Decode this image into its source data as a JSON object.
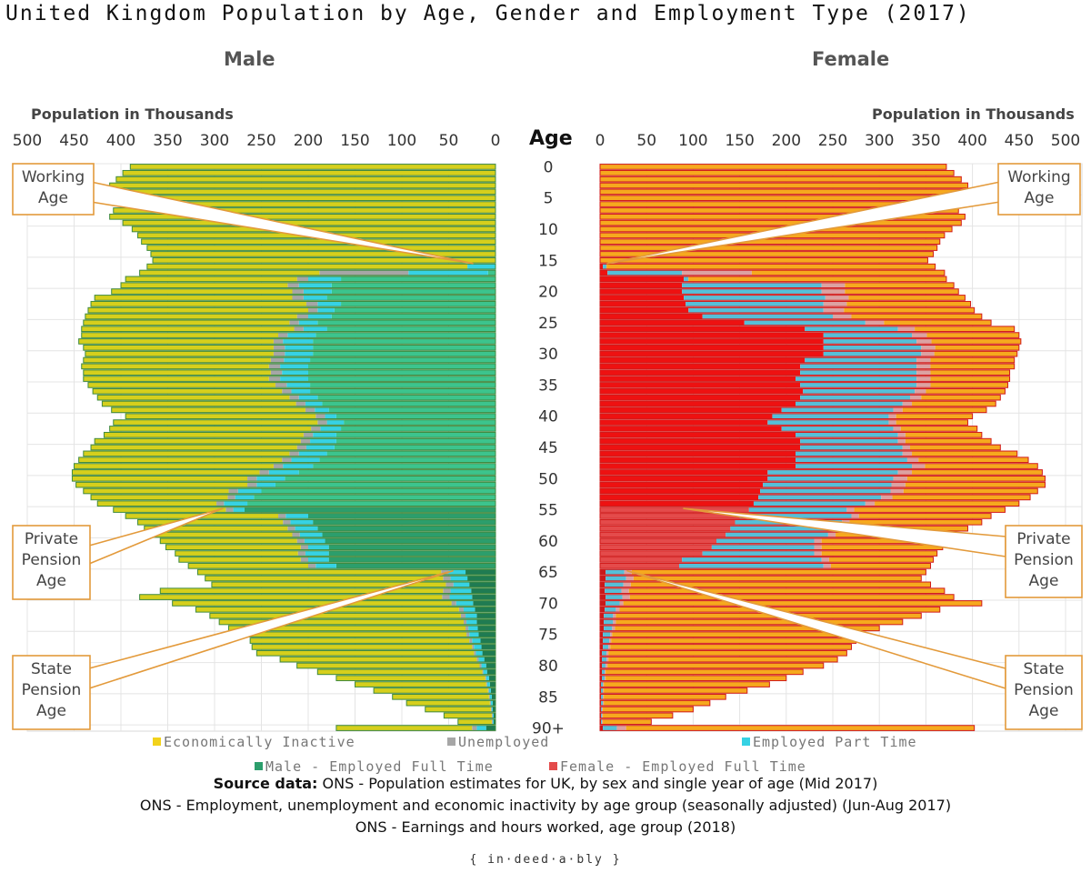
{
  "title": "United Kingdom Population by Age, Gender and Employment Type (2017)",
  "male_label": "Male",
  "female_label": "Female",
  "axis_title_left": "Population in Thousands",
  "axis_title_right": "Population in Thousands",
  "age_axis_label": "Age",
  "callouts": {
    "working": [
      "Working",
      "Age"
    ],
    "private": [
      "Private",
      "Pension",
      "Age"
    ],
    "state": [
      "State",
      "Pension",
      "Age"
    ]
  },
  "legend": {
    "inactive": "Economically Inactive",
    "unemployed": "Unemployed",
    "part_time": "Employed Part Time",
    "male_ft": "Male - Employed Full Time",
    "female_ft": "Female - Employed Full Time"
  },
  "source": {
    "line1_bold": "Source data:",
    "line1": " ONS - Population estimates for UK, by sex and single year of age (Mid 2017)",
    "line2": "ONS - Employment, unemployment and economic inactivity by age group (seasonally adjusted) (Jun-Aug 2017)",
    "line3": "ONS - Earnings and hours worked, age group (2018)"
  },
  "brand": "{ in·deed·a·bly }",
  "colors": {
    "inactive_male": "#d6cf1c",
    "inactive_female": "#f6a91e",
    "unemployed_male": "#a6a6a6",
    "unemployed_female": "#dca2a2",
    "part_time_male": "#36d2e4",
    "part_time_female": "#56bfd8",
    "male_ft": "#3cc48d",
    "male_ft_dark": "#2c9e6c",
    "male_ft_darker": "#1f7b52",
    "female_ft": "#ee1111",
    "female_ft_dark": "#e44b4b",
    "female_ft_darker": "#c81a1a",
    "male_border": "#3f8a3f",
    "female_border": "#d11a1a",
    "callout": "#e39a3b"
  },
  "chart_data": {
    "type": "population-pyramid (stacked horizontal bar)",
    "xlabel": "Population in Thousands",
    "ylabel": "Age",
    "xlim": [
      0,
      500
    ],
    "x_ticks": [
      0,
      50,
      100,
      150,
      200,
      250,
      300,
      350,
      400,
      450,
      500
    ],
    "age_ticks": [
      "0",
      "5",
      "10",
      "15",
      "20",
      "25",
      "30",
      "35",
      "40",
      "45",
      "50",
      "55",
      "60",
      "65",
      "70",
      "75",
      "80",
      "85",
      "90+"
    ],
    "categories_order": [
      "Employed Full Time",
      "Employed Part Time",
      "Unemployed",
      "Economically Inactive"
    ],
    "male": {
      "total": [
        390,
        398,
        405,
        412,
        418,
        405,
        400,
        408,
        412,
        398,
        388,
        382,
        378,
        372,
        368,
        366,
        372,
        380,
        395,
        400,
        410,
        428,
        432,
        435,
        438,
        440,
        442,
        442,
        445,
        440,
        438,
        440,
        442,
        440,
        440,
        435,
        430,
        425,
        420,
        410,
        395,
        408,
        412,
        418,
        428,
        432,
        440,
        445,
        450,
        452,
        452,
        448,
        440,
        432,
        425,
        408,
        395,
        382,
        375,
        365,
        358,
        352,
        342,
        338,
        328,
        318,
        310,
        303,
        358,
        380,
        345,
        320,
        305,
        295,
        285,
        265,
        262,
        260,
        255,
        230,
        212,
        190,
        170,
        150,
        130,
        110,
        95,
        75,
        55,
        40,
        170
      ],
      "full_time": [
        0,
        0,
        0,
        0,
        0,
        0,
        0,
        0,
        0,
        0,
        0,
        0,
        0,
        0,
        0,
        0,
        0,
        8,
        165,
        175,
        175,
        180,
        165,
        172,
        175,
        190,
        180,
        192,
        195,
        195,
        195,
        198,
        200,
        200,
        200,
        198,
        198,
        190,
        185,
        178,
        170,
        162,
        165,
        170,
        170,
        172,
        180,
        188,
        195,
        210,
        225,
        235,
        250,
        258,
        265,
        268,
        200,
        195,
        190,
        185,
        182,
        178,
        178,
        178,
        170,
        32,
        30,
        28,
        26,
        25,
        24,
        22,
        20,
        20,
        19,
        18,
        16,
        15,
        14,
        12,
        10,
        9,
        7,
        6,
        5,
        4,
        3,
        3,
        2,
        2,
        10
      ],
      "part_time": [
        0,
        0,
        0,
        0,
        0,
        0,
        0,
        0,
        0,
        0,
        0,
        0,
        0,
        0,
        0,
        0,
        30,
        85,
        35,
        35,
        30,
        25,
        25,
        18,
        25,
        20,
        25,
        30,
        32,
        30,
        30,
        28,
        30,
        28,
        30,
        25,
        20,
        20,
        18,
        15,
        12,
        18,
        22,
        25,
        28,
        30,
        30,
        30,
        32,
        32,
        30,
        20,
        25,
        20,
        25,
        12,
        24,
        24,
        24,
        24,
        22,
        22,
        25,
        22,
        22,
        18,
        18,
        17,
        22,
        24,
        18,
        12,
        12,
        11,
        10,
        10,
        9,
        8,
        7,
        6,
        5,
        4,
        3,
        3,
        2,
        2,
        2,
        1,
        1,
        1,
        10
      ],
      "unemployed": [
        0,
        0,
        0,
        0,
        0,
        0,
        0,
        0,
        0,
        0,
        0,
        0,
        0,
        0,
        0,
        0,
        0,
        95,
        12,
        12,
        12,
        12,
        12,
        10,
        12,
        10,
        10,
        10,
        10,
        12,
        12,
        14,
        12,
        12,
        12,
        12,
        10,
        10,
        10,
        10,
        10,
        10,
        10,
        10,
        10,
        10,
        10,
        10,
        10,
        10,
        10,
        10,
        10,
        8,
        8,
        8,
        8,
        8,
        8,
        8,
        8,
        8,
        8,
        8,
        8,
        8,
        8,
        8,
        8,
        8,
        5,
        5,
        5,
        3,
        3,
        3,
        3,
        2,
        2,
        2,
        2,
        1,
        1,
        1,
        1,
        1,
        1,
        1,
        1,
        1,
        5
      ],
      "inactive": null
    },
    "female": {
      "total": [
        372,
        380,
        388,
        395,
        400,
        395,
        390,
        385,
        392,
        388,
        378,
        370,
        365,
        362,
        358,
        352,
        360,
        370,
        372,
        380,
        385,
        392,
        398,
        402,
        410,
        420,
        445,
        450,
        452,
        450,
        448,
        445,
        445,
        440,
        440,
        438,
        435,
        430,
        425,
        415,
        400,
        395,
        405,
        410,
        420,
        430,
        448,
        460,
        470,
        475,
        478,
        478,
        470,
        462,
        450,
        435,
        420,
        410,
        395,
        382,
        375,
        368,
        362,
        358,
        355,
        350,
        345,
        355,
        370,
        380,
        410,
        365,
        345,
        325,
        300,
        285,
        275,
        270,
        265,
        255,
        240,
        218,
        200,
        182,
        158,
        135,
        118,
        100,
        78,
        55,
        402
      ],
      "full_time": [
        0,
        0,
        0,
        0,
        0,
        0,
        0,
        0,
        0,
        0,
        0,
        0,
        0,
        0,
        0,
        0,
        3,
        8,
        90,
        88,
        88,
        90,
        92,
        95,
        110,
        155,
        220,
        240,
        240,
        240,
        240,
        220,
        215,
        215,
        210,
        215,
        218,
        215,
        210,
        195,
        185,
        180,
        195,
        210,
        215,
        215,
        210,
        210,
        210,
        180,
        180,
        175,
        172,
        170,
        165,
        160,
        150,
        145,
        140,
        135,
        125,
        120,
        110,
        88,
        85,
        6,
        6,
        5,
        5,
        6,
        6,
        5,
        4,
        4,
        4,
        3,
        3,
        3,
        2,
        2,
        2,
        2,
        2,
        1,
        1,
        1,
        1,
        1,
        1,
        1,
        3
      ],
      "part_time": [
        0,
        0,
        0,
        0,
        0,
        0,
        0,
        0,
        0,
        0,
        0,
        0,
        0,
        0,
        0,
        0,
        4,
        80,
        5,
        150,
        150,
        152,
        148,
        145,
        140,
        130,
        100,
        95,
        100,
        105,
        105,
        120,
        125,
        125,
        130,
        125,
        120,
        118,
        115,
        120,
        125,
        130,
        120,
        110,
        105,
        110,
        115,
        120,
        125,
        140,
        135,
        138,
        140,
        132,
        120,
        105,
        120,
        115,
        112,
        110,
        105,
        110,
        120,
        150,
        155,
        20,
        22,
        20,
        18,
        18,
        15,
        12,
        10,
        10,
        9,
        8,
        7,
        6,
        5,
        5,
        4,
        3,
        3,
        2,
        2,
        2,
        2,
        1,
        1,
        1,
        15
      ],
      "unemployed": [
        0,
        0,
        0,
        0,
        0,
        0,
        0,
        0,
        0,
        0,
        0,
        0,
        0,
        0,
        0,
        0,
        0,
        75,
        0,
        25,
        25,
        25,
        25,
        22,
        20,
        20,
        18,
        16,
        16,
        15,
        14,
        15,
        15,
        15,
        15,
        15,
        12,
        12,
        10,
        10,
        8,
        8,
        8,
        8,
        8,
        8,
        10,
        12,
        14,
        15,
        15,
        15,
        14,
        12,
        10,
        8,
        8,
        8,
        8,
        8,
        8,
        8,
        8,
        8,
        8,
        8,
        8,
        8,
        8,
        8,
        4,
        4,
        3,
        3,
        3,
        2,
        2,
        2,
        2,
        2,
        2,
        1,
        1,
        1,
        1,
        1,
        1,
        1,
        1,
        1,
        10
      ],
      "inactive": null
    },
    "annotations": [
      "Working Age (from 16)",
      "Private Pension Age (55)",
      "State Pension Age (65)"
    ]
  }
}
